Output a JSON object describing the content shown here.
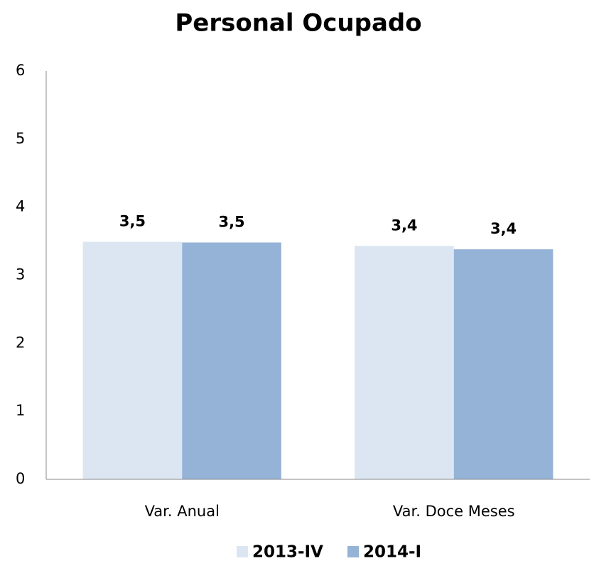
{
  "chart_data": {
    "type": "bar",
    "title": "Personal Ocupado",
    "categories": [
      "Var. Anual",
      "Var. Doce Meses"
    ],
    "series": [
      {
        "name": "2013-IV",
        "color": "#dce6f2",
        "values": [
          3.49,
          3.43
        ],
        "value_labels": [
          "3,5",
          "3,4"
        ]
      },
      {
        "name": "2014-I",
        "color": "#95b3d7",
        "values": [
          3.48,
          3.38
        ],
        "value_labels": [
          "3,5",
          "3,4"
        ]
      }
    ],
    "ylim": [
      0,
      6
    ],
    "yticks": [
      0,
      1,
      2,
      3,
      4,
      5,
      6
    ],
    "grid": false,
    "legend": "bottom"
  }
}
